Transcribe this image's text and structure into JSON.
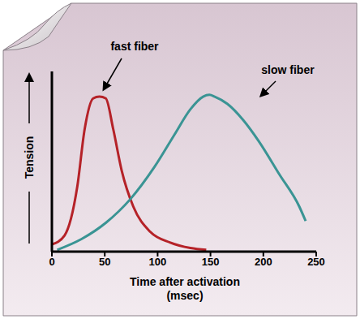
{
  "chart_data": {
    "type": "line",
    "xlabel": "Time after activation\n(msec)",
    "ylabel": "Tension",
    "xlim": [
      0,
      250
    ],
    "xticks": [
      0,
      50,
      100,
      150,
      200,
      250
    ],
    "ylim": [
      0,
      1
    ],
    "tick_labels": "x",
    "grid": false,
    "series": [
      {
        "name": "fast fiber",
        "color": "#b52228",
        "x": [
          0,
          12,
          24,
          31,
          39,
          45,
          51,
          58,
          66,
          77,
          93,
          112,
          131,
          146
        ],
        "values": [
          0.04,
          0.09,
          0.36,
          0.68,
          0.85,
          0.86,
          0.85,
          0.68,
          0.45,
          0.25,
          0.11,
          0.05,
          0.02,
          0.01
        ]
      },
      {
        "name": "slow fiber",
        "color": "#3a9494",
        "x": [
          5,
          28,
          51,
          74,
          97,
          116,
          131,
          143,
          149,
          154,
          166,
          181,
          196,
          215,
          234,
          240
        ],
        "values": [
          0.01,
          0.07,
          0.16,
          0.29,
          0.47,
          0.65,
          0.79,
          0.86,
          0.87,
          0.86,
          0.82,
          0.73,
          0.61,
          0.43,
          0.25,
          0.17
        ]
      }
    ]
  }
}
